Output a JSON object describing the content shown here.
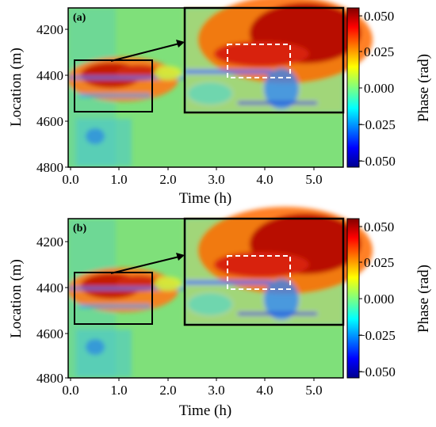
{
  "chart_data": [
    {
      "type": "heatmap",
      "panel_label": "(a)",
      "xlabel": "Time (h)",
      "ylabel": "Location (m)",
      "x_ticks": [
        "0.0",
        "1.0",
        "2.0",
        "3.0",
        "4.0",
        "5.0"
      ],
      "y_ticks": [
        "4200",
        "4400",
        "4600",
        "4800"
      ],
      "xlim": [
        0,
        5.5
      ],
      "ylim": [
        4100,
        4800
      ],
      "colorbar": {
        "label": "Phase (rad)",
        "ticks": [
          "0.050",
          "0.025",
          "0.000",
          "−0.025",
          "−0.050"
        ],
        "range": [
          -0.05,
          0.05
        ],
        "colormap": "jet"
      },
      "inset": {
        "source_x": [
          0.15,
          1.65
        ],
        "source_y": [
          4330,
          4560
        ]
      },
      "highlight_box": {
        "x": [
          3.2,
          4.4
        ],
        "y": [
          4270,
          4400
        ]
      }
    },
    {
      "type": "heatmap",
      "panel_label": "(b)",
      "xlabel": "Time (h)",
      "ylabel": "Location (m)",
      "x_ticks": [
        "0.0",
        "1.0",
        "2.0",
        "3.0",
        "4.0",
        "5.0"
      ],
      "y_ticks": [
        "4200",
        "4400",
        "4600",
        "4800"
      ],
      "xlim": [
        0,
        5.5
      ],
      "ylim": [
        4100,
        4800
      ],
      "colorbar": {
        "label": "Phase (rad)",
        "ticks": [
          "0.050",
          "0.025",
          "0.000",
          "−0.025",
          "−0.050"
        ],
        "range": [
          -0.05,
          0.05
        ],
        "colormap": "jet"
      },
      "inset": {
        "source_x": [
          0.15,
          1.65
        ],
        "source_y": [
          4330,
          4560
        ]
      },
      "highlight_box": {
        "x": [
          3.2,
          4.4
        ],
        "y": [
          4270,
          4400
        ]
      }
    }
  ],
  "colors": {
    "background_field": "#7fe07a",
    "hot": "#a00000",
    "warm": "#ff6a00",
    "cold": "#1e7bff",
    "frame": "#000000",
    "highlight": "#ffffff"
  }
}
